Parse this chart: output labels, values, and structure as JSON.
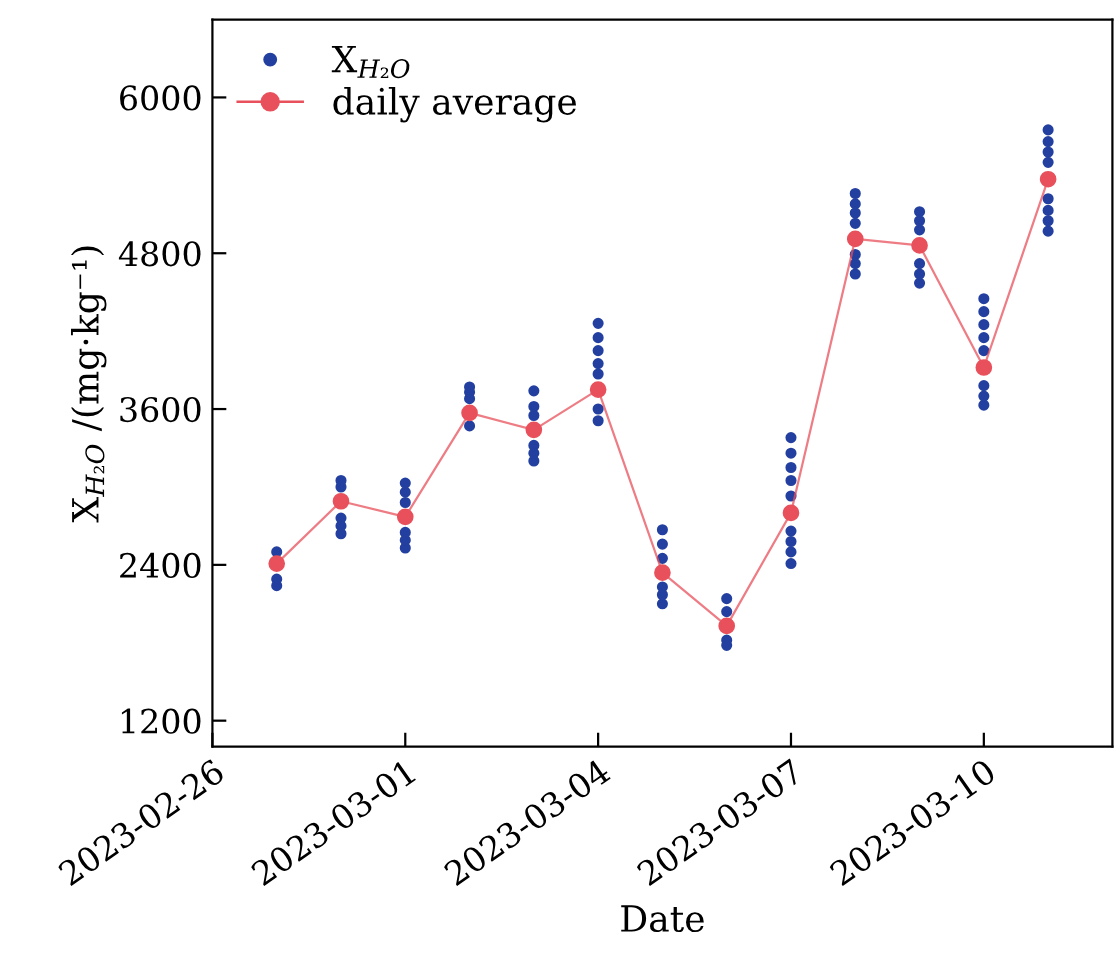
{
  "chart_data": {
    "type": "scatter",
    "xlabel": "Date",
    "ylabel": "X$_{H₂O}$ /(mg·kg⁻¹)",
    "xlim": [
      "2023-02-26",
      "2023-03-12"
    ],
    "xticks": [
      "2023-02-26",
      "2023-03-01",
      "2023-03-04",
      "2023-03-07",
      "2023-03-10"
    ],
    "ylim": [
      1000,
      6600
    ],
    "yticks": [
      1200,
      2400,
      3600,
      4800,
      6000
    ],
    "grid": false,
    "legend": "top left",
    "series": [
      {
        "name": "X$_{H₂O}$",
        "color": "#2340a0",
        "marker": "circle",
        "x": [
          "2023-02-27",
          "2023-02-27",
          "2023-02-27",
          "2023-02-28",
          "2023-02-28",
          "2023-02-28",
          "2023-02-28",
          "2023-02-28",
          "2023-03-01",
          "2023-03-01",
          "2023-03-01",
          "2023-03-01",
          "2023-03-01",
          "2023-03-01",
          "2023-03-02",
          "2023-03-02",
          "2023-03-02",
          "2023-03-02",
          "2023-03-03",
          "2023-03-03",
          "2023-03-03",
          "2023-03-03",
          "2023-03-03",
          "2023-03-03",
          "2023-03-04",
          "2023-03-04",
          "2023-03-04",
          "2023-03-04",
          "2023-03-04",
          "2023-03-04",
          "2023-03-04",
          "2023-03-05",
          "2023-03-05",
          "2023-03-05",
          "2023-03-05",
          "2023-03-05",
          "2023-03-05",
          "2023-03-06",
          "2023-03-06",
          "2023-03-06",
          "2023-03-06",
          "2023-03-07",
          "2023-03-07",
          "2023-03-07",
          "2023-03-07",
          "2023-03-07",
          "2023-03-07",
          "2023-03-07",
          "2023-03-07",
          "2023-03-07",
          "2023-03-08",
          "2023-03-08",
          "2023-03-08",
          "2023-03-08",
          "2023-03-08",
          "2023-03-08",
          "2023-03-08",
          "2023-03-09",
          "2023-03-09",
          "2023-03-09",
          "2023-03-09",
          "2023-03-09",
          "2023-03-09",
          "2023-03-10",
          "2023-03-10",
          "2023-03-10",
          "2023-03-10",
          "2023-03-10",
          "2023-03-10",
          "2023-03-10",
          "2023-03-10",
          "2023-03-11",
          "2023-03-11",
          "2023-03-11",
          "2023-03-11",
          "2023-03-11",
          "2023-03-11",
          "2023-03-11",
          "2023-03-11"
        ],
        "values": [
          2240,
          2290,
          2500,
          2640,
          2700,
          2760,
          3000,
          3050,
          2530,
          2590,
          2650,
          2880,
          2960,
          3030,
          3470,
          3680,
          3730,
          3770,
          3200,
          3260,
          3320,
          3550,
          3620,
          3740,
          3510,
          3600,
          3870,
          3950,
          4050,
          4150,
          4260,
          2100,
          2170,
          2230,
          2450,
          2560,
          2670,
          1780,
          1820,
          2040,
          2140,
          2410,
          2500,
          2580,
          2660,
          2930,
          3050,
          3150,
          3260,
          3380,
          4640,
          4720,
          4790,
          5030,
          5110,
          5180,
          5260,
          4570,
          4640,
          4720,
          4980,
          5050,
          5120,
          3630,
          3700,
          3780,
          4050,
          4150,
          4250,
          4350,
          4450,
          4970,
          5050,
          5130,
          5220,
          5500,
          5580,
          5660,
          5750
        ]
      },
      {
        "name": "daily average",
        "type": "line",
        "color": "#e8505b",
        "marker": "circle",
        "x": [
          "2023-02-27",
          "2023-02-28",
          "2023-03-01",
          "2023-03-02",
          "2023-03-03",
          "2023-03-04",
          "2023-03-05",
          "2023-03-06",
          "2023-03-07",
          "2023-03-08",
          "2023-03-09",
          "2023-03-10",
          "2023-03-11"
        ],
        "values": [
          2410,
          2890,
          2770,
          3570,
          3440,
          3750,
          2340,
          1930,
          2800,
          4910,
          4860,
          3920,
          5370
        ]
      }
    ]
  }
}
